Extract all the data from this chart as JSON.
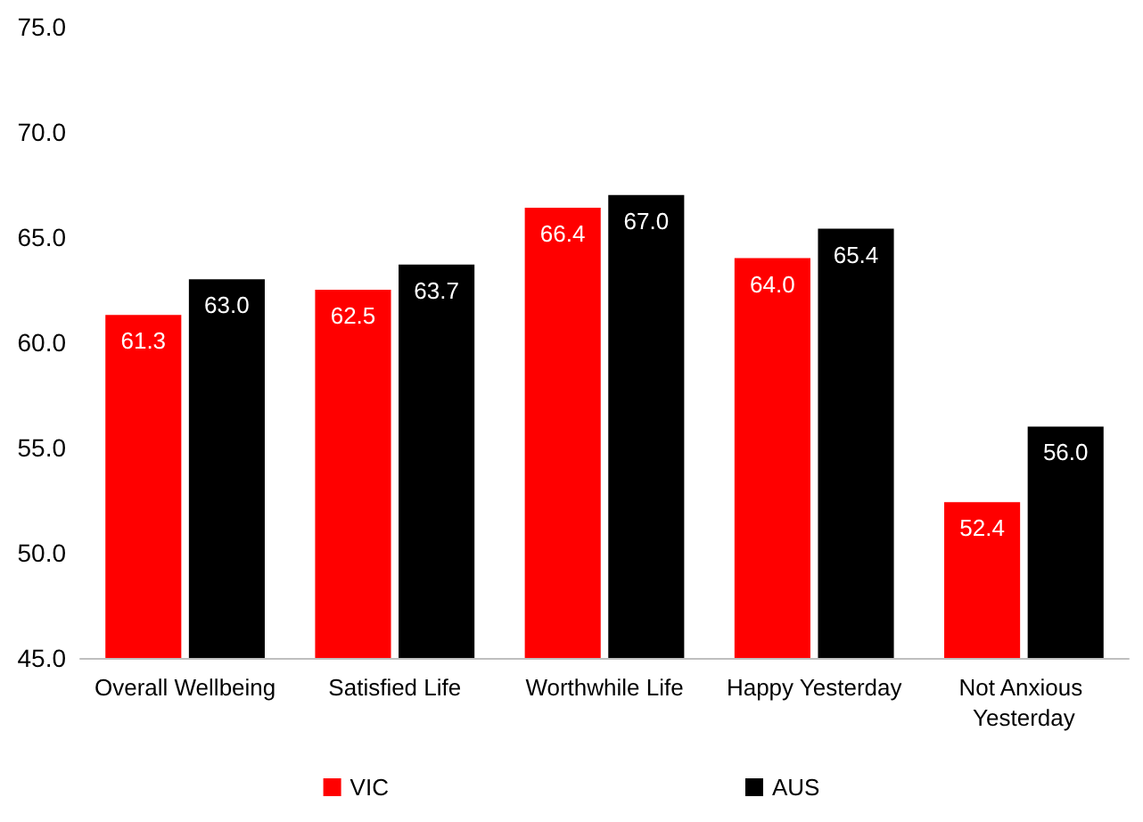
{
  "chart_data": {
    "type": "bar",
    "categories": [
      "Overall Wellbeing",
      "Satisfied Life",
      "Worthwhile Life",
      "Happy Yesterday",
      "Not Anxious Yesterday"
    ],
    "series": [
      {
        "name": "VIC",
        "color": "#ff0000",
        "values": [
          61.3,
          62.5,
          66.4,
          64.0,
          52.4
        ],
        "value_labels": [
          "61.3",
          "62.5",
          "66.4",
          "64.0",
          "52.4"
        ]
      },
      {
        "name": "AUS",
        "color": "#000000",
        "values": [
          63.0,
          63.7,
          67.0,
          65.4,
          56.0
        ],
        "value_labels": [
          "63.0",
          "63.7",
          "67.0",
          "65.4",
          "56.0"
        ]
      }
    ],
    "ylim": [
      45,
      75
    ],
    "yticks": [
      {
        "value": 45,
        "label": "45.0"
      },
      {
        "value": 50,
        "label": "50.0"
      },
      {
        "value": 55,
        "label": "55.0"
      },
      {
        "value": 60,
        "label": "60.0"
      },
      {
        "value": 65,
        "label": "65.0"
      },
      {
        "value": 70,
        "label": "70.0"
      },
      {
        "value": 75,
        "label": "75.0"
      }
    ],
    "grid": false,
    "legend": "bottom"
  }
}
